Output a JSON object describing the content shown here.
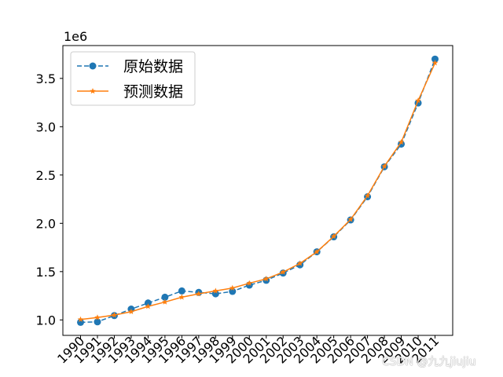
{
  "chart_data": {
    "type": "line",
    "x": [
      "1990",
      "1991",
      "1992",
      "1993",
      "1994",
      "1995",
      "1996",
      "1997",
      "1998",
      "1999",
      "2000",
      "2001",
      "2002",
      "2003",
      "2004",
      "2005",
      "2006",
      "2007",
      "2008",
      "2009",
      "2010",
      "2011"
    ],
    "series": [
      {
        "name": "原始数据",
        "color": "#1f77b4",
        "style": "dashed",
        "marker": "circle",
        "values": [
          975000,
          980000,
          1045000,
          1112000,
          1175000,
          1235000,
          1300000,
          1285000,
          1270000,
          1295000,
          1360000,
          1410000,
          1485000,
          1570000,
          1705000,
          1860000,
          2035000,
          2275000,
          2585000,
          2820000,
          3245000,
          3700000
        ]
      },
      {
        "name": "预测数据",
        "color": "#ff7f0e",
        "style": "solid",
        "marker": "star",
        "values": [
          1005000,
          1025000,
          1050000,
          1085000,
          1140000,
          1185000,
          1235000,
          1270000,
          1300000,
          1330000,
          1380000,
          1425000,
          1495000,
          1585000,
          1705000,
          1865000,
          2040000,
          2285000,
          2590000,
          2840000,
          3270000,
          3660000
        ]
      }
    ],
    "y_scale_label": "1e6",
    "yticks": [
      1.0,
      1.5,
      2.0,
      2.5,
      3.0,
      3.5
    ],
    "ylim": [
      0.84,
      3.84
    ],
    "legend_position": "top-left",
    "grid": false
  },
  "watermark": "CSDN @九九jiujiu"
}
